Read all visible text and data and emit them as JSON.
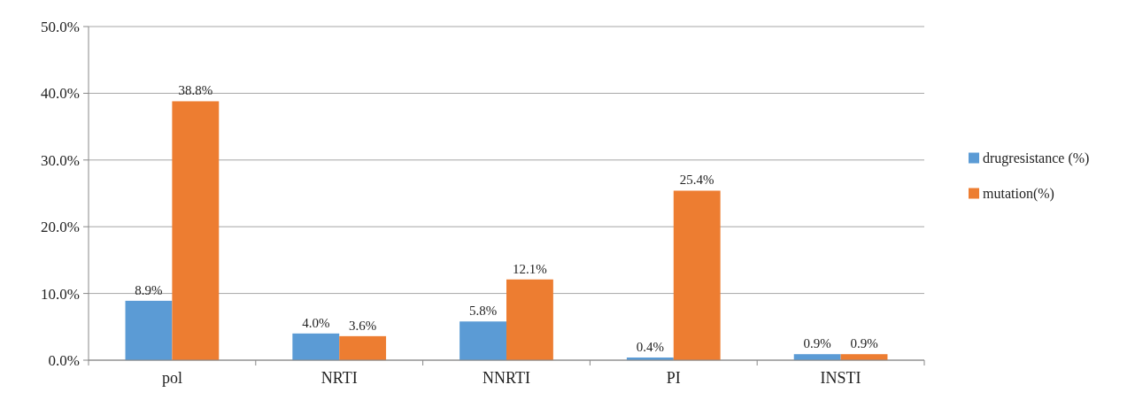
{
  "chart_data": {
    "type": "bar",
    "categories": [
      "pol",
      "NRTI",
      "NNRTI",
      "PI",
      "INSTI"
    ],
    "series": [
      {
        "name": "drugresistance (%)",
        "color": "#5b9bd5",
        "values": [
          8.9,
          4.0,
          5.8,
          0.4,
          0.9
        ],
        "value_labels": [
          "8.9%",
          "4.0%",
          "5.8%",
          "0.4%",
          "0.9%"
        ]
      },
      {
        "name": "mutation(%)",
        "color": "#ed7d31",
        "values": [
          38.8,
          3.6,
          12.1,
          25.4,
          0.9
        ],
        "value_labels": [
          "38.8%",
          "3.6%",
          "12.1%",
          "25.4%",
          "0.9%"
        ]
      }
    ],
    "ylim": [
      0,
      50
    ],
    "yticks": [
      {
        "value": 0,
        "label": "0.0%"
      },
      {
        "value": 10,
        "label": "10.0%"
      },
      {
        "value": 20,
        "label": "20.0%"
      },
      {
        "value": 30,
        "label": "30.0%"
      },
      {
        "value": 40,
        "label": "40.0%"
      },
      {
        "value": 50,
        "label": "50.0%"
      }
    ],
    "grid": "y",
    "legend": "right"
  }
}
